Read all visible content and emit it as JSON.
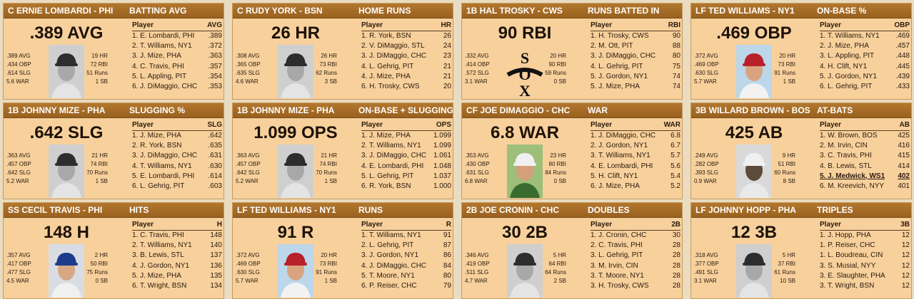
{
  "colors": {
    "header": "#a66b25",
    "card": "#f7d09c",
    "page": "#e9dcc0"
  },
  "cards": [
    {
      "player": "C ERNIE LOMBARDI - PHI",
      "category": "BATTING AVG",
      "big": ".389 AVG",
      "left_stats": [
        ".389 AVG",
        ".434 OBP",
        ".614 SLG",
        "5.6 WAR"
      ],
      "right_stats": [
        "19 HR",
        "72 RBI",
        "51 Runs",
        "1 SB"
      ],
      "table_head": [
        "Player",
        "AVG"
      ],
      "rows": [
        [
          "1. E. Lombardi, PHI",
          ".389"
        ],
        [
          "2. T. Williams, NY1",
          ".372"
        ],
        [
          "3. J. Mize, PHA",
          ".363"
        ],
        [
          "4. C. Travis, PHI",
          ".357"
        ],
        [
          "5. L. Appling, PIT",
          ".354"
        ],
        [
          "6. J. DiMaggio, CHC",
          ".353"
        ]
      ],
      "photo": "bw-dark-cap"
    },
    {
      "player": "C RUDY YORK - BSN",
      "category": "HOME RUNS",
      "big": "26 HR",
      "left_stats": [
        ".308 AVG",
        ".365 OBP",
        ".635 SLG",
        "4.6 WAR"
      ],
      "right_stats": [
        "26 HR",
        "73 RBI",
        "62 Runs",
        "3 SB"
      ],
      "table_head": [
        "Player",
        "HR"
      ],
      "rows": [
        [
          "1. R. York, BSN",
          "26"
        ],
        [
          "2. V. DiMaggio, STL",
          "24"
        ],
        [
          "3. J. DiMaggio, CHC",
          "23"
        ],
        [
          "4. L. Gehrig, PIT",
          "21"
        ],
        [
          "4. J. Mize, PHA",
          "21"
        ],
        [
          "6. H. Trosky, CWS",
          "20"
        ]
      ],
      "photo": "bw-dark-cap"
    },
    {
      "player": "1B HAL TROSKY - CWS",
      "category": "RUNS BATTED IN",
      "big": "90 RBI",
      "left_stats": [
        ".332 AVG",
        ".414 OBP",
        ".572 SLG",
        "3.1 WAR"
      ],
      "right_stats": [
        "20 HR",
        "90 RBI",
        "59 Runs",
        "0 SB"
      ],
      "table_head": [
        "Player",
        "RBI"
      ],
      "rows": [
        [
          "1. H. Trosky, CWS",
          "90"
        ],
        [
          "2. M. Ott, PIT",
          "88"
        ],
        [
          "3. J. DiMaggio, CHC",
          "80"
        ],
        [
          "4. L. Gehrig, PIT",
          "75"
        ],
        [
          "5. J. Gordon, NY1",
          "74"
        ],
        [
          "5. J. Mize, PHA",
          "74"
        ]
      ],
      "photo": "sox-logo",
      "logo_letters": [
        "S",
        "O",
        "X"
      ]
    },
    {
      "player": "LF TED WILLIAMS - NY1",
      "category": "ON-BASE %",
      "big": ".469 OBP",
      "left_stats": [
        ".372 AVG",
        ".469 OBP",
        ".630 SLG",
        "5.7 WAR"
      ],
      "right_stats": [
        "20 HR",
        "73 RBI",
        "91 Runs",
        "1 SB"
      ],
      "table_head": [
        "Player",
        "OBP"
      ],
      "rows": [
        [
          "1. T. Williams, NY1",
          ".469"
        ],
        [
          "2. J. Mize, PHA",
          ".457"
        ],
        [
          "3. L. Appling, PIT",
          ".448"
        ],
        [
          "4. H. Clift, NY1",
          ".445"
        ],
        [
          "5. J. Gordon, NY1",
          ".439"
        ],
        [
          "6. L. Gehrig, PIT",
          ".433"
        ]
      ],
      "photo": "color-red-cap"
    },
    {
      "player": "1B JOHNNY MIZE - PHA",
      "category": "SLUGGING %",
      "big": ".642 SLG",
      "left_stats": [
        ".363 AVG",
        ".457 OBP",
        ".642 SLG",
        "5.2 WAR"
      ],
      "right_stats": [
        "21 HR",
        "74 RBI",
        "70 Runs",
        "1 SB"
      ],
      "table_head": [
        "Player",
        "SLG"
      ],
      "rows": [
        [
          "1. J. Mize, PHA",
          ".642"
        ],
        [
          "2. R. York, BSN",
          ".635"
        ],
        [
          "3. J. DiMaggio, CHC",
          ".631"
        ],
        [
          "4. T. Williams, NY1",
          ".630"
        ],
        [
          "5. E. Lombardi, PHI",
          ".614"
        ],
        [
          "6. L. Gehrig, PIT",
          ".603"
        ]
      ],
      "photo": "bw-dark-cap"
    },
    {
      "player": "1B JOHNNY MIZE - PHA",
      "category": "ON-BASE + SLUGGING",
      "big": "1.099 OPS",
      "left_stats": [
        ".363 AVG",
        ".457 OBP",
        ".642 SLG",
        "5.2 WAR"
      ],
      "right_stats": [
        "21 HR",
        "74 RBI",
        "70 Runs",
        "1 SB"
      ],
      "table_head": [
        "Player",
        "OPS"
      ],
      "rows": [
        [
          "1. J. Mize, PHA",
          "1.099"
        ],
        [
          "2. T. Williams, NY1",
          "1.099"
        ],
        [
          "3. J. DiMaggio, CHC",
          "1.061"
        ],
        [
          "4. E. Lombardi, PHI",
          "1.048"
        ],
        [
          "5. L. Gehrig, PIT",
          "1.037"
        ],
        [
          "6. R. York, BSN",
          "1.000"
        ]
      ],
      "photo": "bw-dark-cap"
    },
    {
      "player": "CF JOE DIMAGGIO - CHC",
      "category": "WAR",
      "big": "6.8 WAR",
      "left_stats": [
        ".353 AVG",
        ".430 OBP",
        ".631 SLG",
        "6.8 WAR"
      ],
      "right_stats": [
        "23 HR",
        "80 RBI",
        "84 Runs",
        "0 SB"
      ],
      "table_head": [
        "Player",
        "WAR"
      ],
      "rows": [
        [
          "1. J. DiMaggio, CHC",
          "6.8"
        ],
        [
          "2. J. Gordon, NY1",
          "6.7"
        ],
        [
          "3. T. Williams, NY1",
          "5.7"
        ],
        [
          "4. E. Lombardi, PHI",
          "5.6"
        ],
        [
          "5. H. Clift, NY1",
          "5.4"
        ],
        [
          "6. J. Mize, PHA",
          "5.2"
        ]
      ],
      "photo": "color-white-cap"
    },
    {
      "player": "3B WILLARD BROWN - BOS",
      "category": "AT-BATS",
      "big": "425 AB",
      "left_stats": [
        ".249 AVG",
        ".282 OBP",
        ".393 SLG",
        "0.9 WAR"
      ],
      "right_stats": [
        "9 HR",
        "51 RBI",
        "60 Runs",
        "8 SB"
      ],
      "table_head": [
        "Player",
        "AB"
      ],
      "rows": [
        [
          "1. W. Brown, BOS",
          "425"
        ],
        [
          "2. M. Irvin, CIN",
          "416"
        ],
        [
          "3. C. Travis, PHI",
          "415"
        ],
        [
          "4. B. Lewis, STL",
          "414"
        ],
        [
          "5. J. Medwick, WS1",
          "402"
        ],
        [
          "6. M. Kreevich, NYY",
          "401"
        ]
      ],
      "highlight": 4,
      "photo": "bw-light-cap"
    },
    {
      "player": "SS CECIL TRAVIS - PHI",
      "category": "HITS",
      "big": "148 H",
      "left_stats": [
        ".357 AVG",
        ".417 OBP",
        ".477 SLG",
        "4.5 WAR"
      ],
      "right_stats": [
        "2 HR",
        "50 RBI",
        "75 Runs",
        "0 SB"
      ],
      "table_head": [
        "Player",
        "H"
      ],
      "rows": [
        [
          "1. C. Travis, PHI",
          "148"
        ],
        [
          "2. T. Williams, NY1",
          "140"
        ],
        [
          "3. B. Lewis, STL",
          "137"
        ],
        [
          "4. J. Gordon, NY1",
          "136"
        ],
        [
          "5. J. Mize, PHA",
          "135"
        ],
        [
          "6. T. Wright, BSN",
          "134"
        ]
      ],
      "photo": "color-blue-cap"
    },
    {
      "player": "LF TED WILLIAMS - NY1",
      "category": "RUNS",
      "big": "91 R",
      "left_stats": [
        ".372 AVG",
        ".469 OBP",
        ".630 SLG",
        "5.7 WAR"
      ],
      "right_stats": [
        "20 HR",
        "73 RBI",
        "91 Runs",
        "1 SB"
      ],
      "table_head": [
        "Player",
        "R"
      ],
      "rows": [
        [
          "1. T. Williams, NY1",
          "91"
        ],
        [
          "2. L. Gehrig, PIT",
          "87"
        ],
        [
          "3. J. Gordon, NY1",
          "86"
        ],
        [
          "4. J. DiMaggio, CHC",
          "84"
        ],
        [
          "5. T. Moore, NY1",
          "80"
        ],
        [
          "6. P. Reiser, CHC",
          "79"
        ]
      ],
      "photo": "color-red-cap"
    },
    {
      "player": "2B JOE CRONIN - CHC",
      "category": "DOUBLES",
      "big": "30 2B",
      "left_stats": [
        ".346 AVG",
        ".419 OBP",
        ".511 SLG",
        "4.7 WAR"
      ],
      "right_stats": [
        "5 HR",
        "64 RBI",
        "64 Runs",
        "2 SB"
      ],
      "table_head": [
        "Player",
        "2B"
      ],
      "rows": [
        [
          "1. J. Cronin, CHC",
          "30"
        ],
        [
          "2. C. Travis, PHI",
          "28"
        ],
        [
          "3. L. Gehrig, PIT",
          "28"
        ],
        [
          "3. M. Irvin, CIN",
          "28"
        ],
        [
          "3. T. Moore, NY1",
          "28"
        ],
        [
          "3. H. Trosky, CWS",
          "28"
        ]
      ],
      "photo": "bw-dark-cap"
    },
    {
      "player": "LF JOHNNY HOPP - PHA",
      "category": "TRIPLES",
      "big": "12 3B",
      "left_stats": [
        ".318 AVG",
        ".377 OBP",
        ".491 SLG",
        "3.1 WAR"
      ],
      "right_stats": [
        "5 HR",
        "37 RBI",
        "61 Runs",
        "10 SB"
      ],
      "table_head": [
        "Player",
        "3B"
      ],
      "rows": [
        [
          "1. J. Hopp, PHA",
          "12"
        ],
        [
          "1. P. Reiser, CHC",
          "12"
        ],
        [
          "1. L. Boudreau, CIN",
          "12"
        ],
        [
          "3. S. Musial, NYY",
          "12"
        ],
        [
          "3. E. Slaughter, PHA",
          "12"
        ],
        [
          "3. T. Wright, BSN",
          "12"
        ]
      ],
      "photo": "bw-dark-cap"
    }
  ]
}
